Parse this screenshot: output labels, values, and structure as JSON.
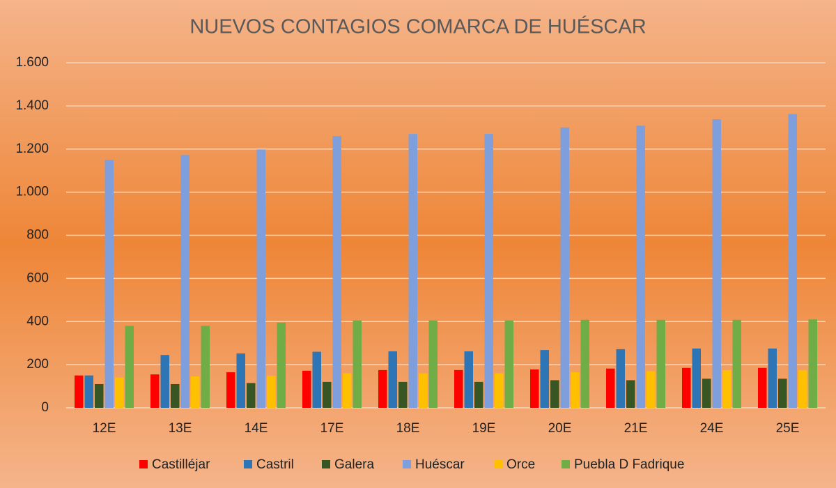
{
  "chart_data": {
    "type": "bar",
    "title": "NUEVOS CONTAGIOS COMARCA DE HUÉSCAR",
    "categories": [
      "12E",
      "13E",
      "14E",
      "17E",
      "18E",
      "19E",
      "20E",
      "21E",
      "24E",
      "25E"
    ],
    "series": [
      {
        "name": "Castilléjar",
        "color": "#ff0000",
        "values": [
          150,
          155,
          165,
          172,
          175,
          175,
          178,
          182,
          185,
          185
        ]
      },
      {
        "name": "Castril",
        "color": "#2e75b6",
        "values": [
          150,
          245,
          252,
          260,
          262,
          262,
          268,
          272,
          275,
          275
        ]
      },
      {
        "name": "Galera",
        "color": "#375623",
        "values": [
          110,
          110,
          115,
          120,
          120,
          120,
          128,
          128,
          135,
          135
        ]
      },
      {
        "name": "Huéscar",
        "color": "#7f9fdc",
        "values": [
          1150,
          1172,
          1198,
          1260,
          1270,
          1270,
          1300,
          1308,
          1338,
          1362
        ]
      },
      {
        "name": "Orce",
        "color": "#ffc000",
        "values": [
          140,
          145,
          148,
          160,
          160,
          160,
          165,
          170,
          175,
          175
        ]
      },
      {
        "name": "Puebla D Fadrique",
        "color": "#70ad47",
        "values": [
          380,
          380,
          395,
          405,
          405,
          405,
          408,
          408,
          408,
          410
        ]
      }
    ],
    "ylim": [
      0,
      1600
    ],
    "yticks": [
      0,
      200,
      400,
      600,
      800,
      {
        "value": 1000,
        "label": "1.000"
      },
      {
        "value": 1200,
        "label": "1.200"
      },
      {
        "value": 1400,
        "label": "1.400"
      },
      {
        "value": 1600,
        "label": "1.600"
      }
    ],
    "grid": true,
    "legend": "bottom"
  }
}
